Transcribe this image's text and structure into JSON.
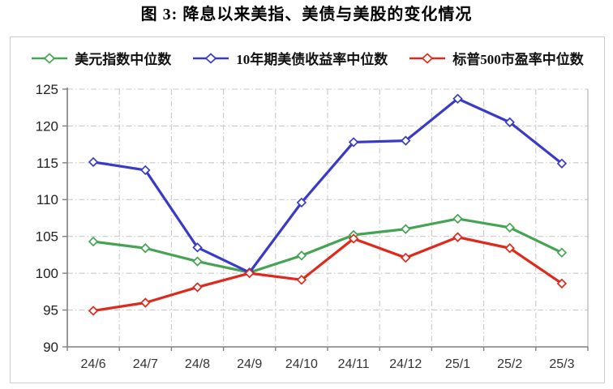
{
  "page_title": "图 3: 降息以来美指、美债与美股的变化情况",
  "chart_data": {
    "type": "line",
    "title": "图 3: 降息以来美指、美债与美股的变化情况",
    "categories": [
      "24/6",
      "24/7",
      "24/8",
      "24/9",
      "24/10",
      "24/11",
      "24/12",
      "25/1",
      "25/2",
      "25/3"
    ],
    "series": [
      {
        "name": "美元指数中位数",
        "color": "#44A454",
        "marker": "open-diamond",
        "values": [
          104.3,
          103.4,
          101.6,
          100.1,
          102.4,
          105.2,
          106.0,
          107.4,
          106.2,
          102.8
        ]
      },
      {
        "name": "10年期美债收益率中位数",
        "color": "#3A3AC8",
        "marker": "open-diamond",
        "values": [
          115.1,
          114.0,
          103.5,
          100.1,
          109.6,
          117.8,
          118.0,
          123.7,
          120.5,
          114.9
        ]
      },
      {
        "name": "标普500市盈率中位数",
        "color": "#DE2A1C",
        "marker": "open-diamond",
        "values": [
          94.9,
          96.0,
          98.1,
          100.0,
          99.1,
          104.7,
          102.1,
          104.9,
          103.4,
          98.6
        ]
      }
    ],
    "ylim": [
      90,
      125
    ],
    "yticks": [
      90,
      95,
      100,
      105,
      110,
      115,
      120,
      125
    ],
    "xlabel": "",
    "ylabel": "",
    "grid": true,
    "legend_position": "top"
  },
  "colors": {
    "axis": "#7f7f7f",
    "grid": "#c9c9c9",
    "plot_right_border": "#b5b5b5",
    "box_border": "#c9ced4",
    "tick_text": "#222222"
  }
}
